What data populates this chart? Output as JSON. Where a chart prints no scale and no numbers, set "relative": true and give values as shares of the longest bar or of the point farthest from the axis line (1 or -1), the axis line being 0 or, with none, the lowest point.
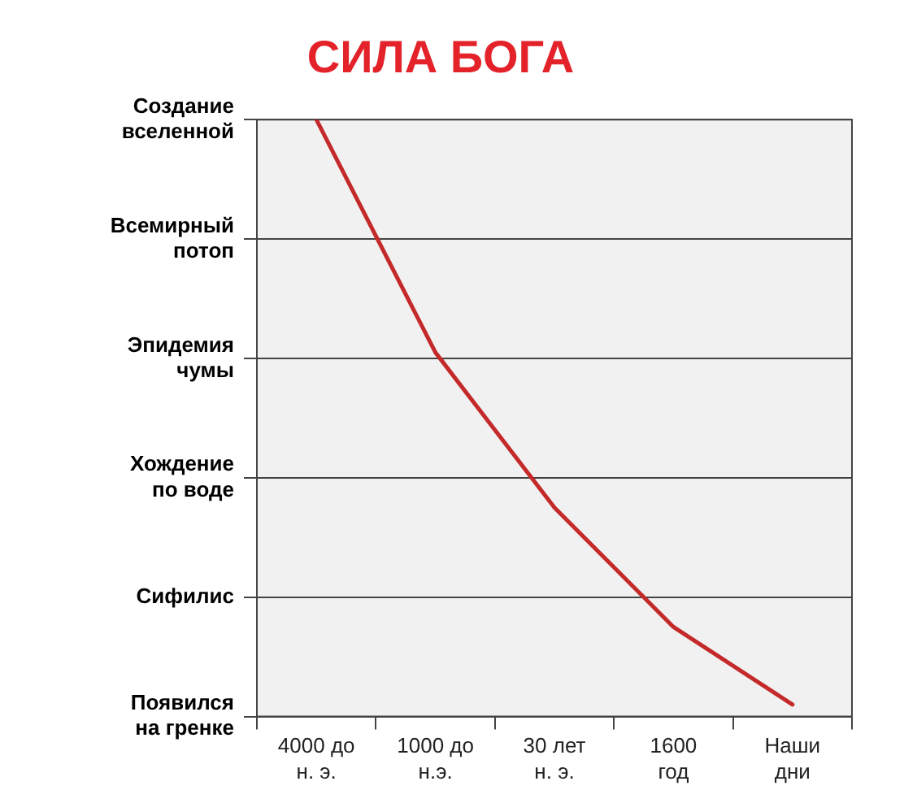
{
  "chart_data": {
    "type": "line",
    "title": "СИЛА БОГА",
    "relative": true,
    "categories": [
      "4000 до\nн. э.",
      "1000 до\nн.э.",
      "30 лет\nн. э.",
      "1600\nгод",
      "Наши\nдни"
    ],
    "y_categories": [
      "Создание\nвселенной",
      "Всемирный\nпотоп",
      "Эпидемия\nчумы",
      "Хождение\nпо воде",
      "Сифилис",
      "Появился\nна гренке"
    ],
    "series": [
      {
        "color": "#c42a2a",
        "values": [
          1,
          0.61,
          0.35,
          0.15,
          0.02
        ]
      }
    ],
    "grid": "y",
    "marker": "none",
    "line_style": "solid",
    "legend": false
  }
}
